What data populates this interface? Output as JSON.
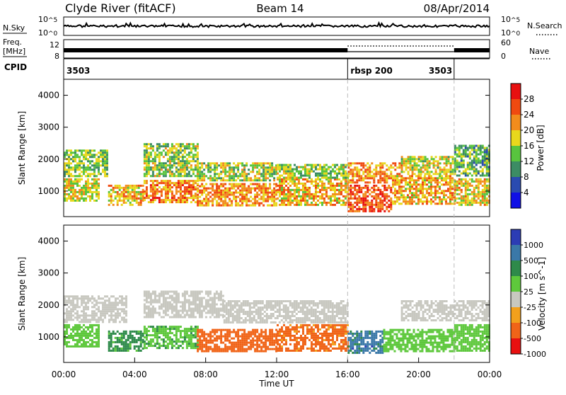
{
  "header": {
    "station": "Clyde River (fitACF)",
    "beam": "Beam 14",
    "date": "08/Apr/2014"
  },
  "nsky_panel": {
    "left_label": "N.Sky",
    "right_label": "N.Search",
    "left_ticks": [
      {
        "base": "10",
        "exp": "^5"
      },
      {
        "base": "10",
        "exp": "^0"
      }
    ],
    "right_ticks": [
      {
        "base": "10",
        "exp": "^5"
      },
      {
        "base": "10",
        "exp": "^0"
      }
    ]
  },
  "freq_panel": {
    "left_label_lines": [
      "Freq.",
      "[MHz]"
    ],
    "right_label": "Nave",
    "left_ticks": [
      "12",
      "8"
    ],
    "right_ticks": [
      "60",
      "0"
    ]
  },
  "cpid": {
    "label": "CPID",
    "segments": [
      {
        "name": "3503",
        "start": 0,
        "end": 16
      },
      {
        "name": "rbsp 200",
        "start": 16,
        "end": 22
      },
      {
        "name": "3503",
        "start": 22,
        "end": 24
      }
    ]
  },
  "time_axis": {
    "label": "Time UT",
    "range": [
      0,
      24
    ],
    "ticks": [
      {
        "v": 0,
        "label": "00:00"
      },
      {
        "v": 4,
        "label": "04:00"
      },
      {
        "v": 8,
        "label": "08:00"
      },
      {
        "v": 12,
        "label": "12:00"
      },
      {
        "v": 16,
        "label": "16:00"
      },
      {
        "v": 20,
        "label": "20:00"
      },
      {
        "v": 24,
        "label": "00:00"
      }
    ]
  },
  "chart_data": [
    {
      "type": "heatmap",
      "name": "power",
      "ylabel": "Slant Range [km]",
      "ylim": [
        200,
        4500
      ],
      "yticks": [
        "1000",
        "2000",
        "3000",
        "4000"
      ],
      "colorbar_label": "Power [dB]",
      "colorbar_ticks": [
        "4",
        "8",
        "12",
        "16",
        "20",
        "24",
        "28"
      ],
      "colorbar_colors": [
        "#1010e6",
        "#2a4bb0",
        "#3c8c64",
        "#58c43e",
        "#e8d81c",
        "#f28c1c",
        "#f04a10",
        "#e81010"
      ],
      "bands": [
        {
          "t0": 0.0,
          "t1": 2.0,
          "r0": 700,
          "r1": 1400,
          "value": 18
        },
        {
          "t0": 0.0,
          "t1": 2.5,
          "r0": 1450,
          "r1": 2300,
          "value": 14
        },
        {
          "t0": 2.5,
          "t1": 4.5,
          "r0": 600,
          "r1": 1200,
          "value": 20
        },
        {
          "t0": 4.5,
          "t1": 7.5,
          "r0": 650,
          "r1": 1350,
          "value": 23
        },
        {
          "t0": 4.5,
          "t1": 7.5,
          "r0": 1500,
          "r1": 2500,
          "value": 15
        },
        {
          "t0": 7.5,
          "t1": 12.0,
          "r0": 550,
          "r1": 1250,
          "value": 22
        },
        {
          "t0": 7.5,
          "t1": 12.0,
          "r0": 1350,
          "r1": 1900,
          "value": 16
        },
        {
          "t0": 12.0,
          "t1": 16.0,
          "r0": 600,
          "r1": 1400,
          "value": 20
        },
        {
          "t0": 12.0,
          "t1": 16.0,
          "r0": 1450,
          "r1": 1850,
          "value": 15
        },
        {
          "t0": 16.0,
          "t1": 18.5,
          "r0": 400,
          "r1": 1200,
          "value": 26
        },
        {
          "t0": 16.0,
          "t1": 19.0,
          "r0": 1300,
          "r1": 1900,
          "value": 22
        },
        {
          "t0": 18.5,
          "t1": 22.0,
          "r0": 600,
          "r1": 1500,
          "value": 21
        },
        {
          "t0": 19.0,
          "t1": 22.0,
          "r0": 1550,
          "r1": 2100,
          "value": 17
        },
        {
          "t0": 22.0,
          "t1": 24.0,
          "r0": 550,
          "r1": 1400,
          "value": 19
        },
        {
          "t0": 22.0,
          "t1": 24.0,
          "r0": 1500,
          "r1": 2450,
          "value": 13
        }
      ]
    },
    {
      "type": "heatmap",
      "name": "velocity",
      "ylabel": "Slant Range [km]",
      "ylim": [
        200,
        4500
      ],
      "yticks": [
        "1000",
        "2000",
        "3000",
        "4000"
      ],
      "colorbar_label": "Velocity [m s^-1]",
      "colorbar_ticks": [
        "1000",
        "500",
        "100",
        "25",
        "-25",
        "-100",
        "-500",
        "-1000"
      ],
      "colorbar_colors": [
        "#2c3cb4",
        "#3a78a8",
        "#2e8a4a",
        "#5ec83c",
        "#c8c8c0",
        "#f2a01c",
        "#f06418",
        "#e81010"
      ],
      "bands": [
        {
          "t0": 0.0,
          "t1": 2.0,
          "r0": 700,
          "r1": 1400,
          "value": 60
        },
        {
          "t0": 0.0,
          "t1": 3.5,
          "r0": 1500,
          "r1": 2300,
          "value": 0
        },
        {
          "t0": 2.5,
          "t1": 4.5,
          "r0": 600,
          "r1": 1200,
          "value": 150
        },
        {
          "t0": 4.5,
          "t1": 7.5,
          "r0": 650,
          "r1": 1350,
          "value": 80
        },
        {
          "t0": 4.5,
          "t1": 9.0,
          "r0": 1600,
          "r1": 2450,
          "value": 0
        },
        {
          "t0": 7.5,
          "t1": 12.0,
          "r0": 550,
          "r1": 1250,
          "value": -200
        },
        {
          "t0": 9.0,
          "t1": 16.0,
          "r0": 1450,
          "r1": 2150,
          "value": 0
        },
        {
          "t0": 12.0,
          "t1": 16.0,
          "r0": 600,
          "r1": 1400,
          "value": -150
        },
        {
          "t0": 16.0,
          "t1": 18.0,
          "r0": 500,
          "r1": 1200,
          "value": 700
        },
        {
          "t0": 18.0,
          "t1": 22.0,
          "r0": 550,
          "r1": 1250,
          "value": 60
        },
        {
          "t0": 19.0,
          "t1": 24.0,
          "r0": 1500,
          "r1": 2150,
          "value": 0
        },
        {
          "t0": 22.0,
          "t1": 24.0,
          "r0": 550,
          "r1": 1400,
          "value": 60
        }
      ]
    }
  ]
}
